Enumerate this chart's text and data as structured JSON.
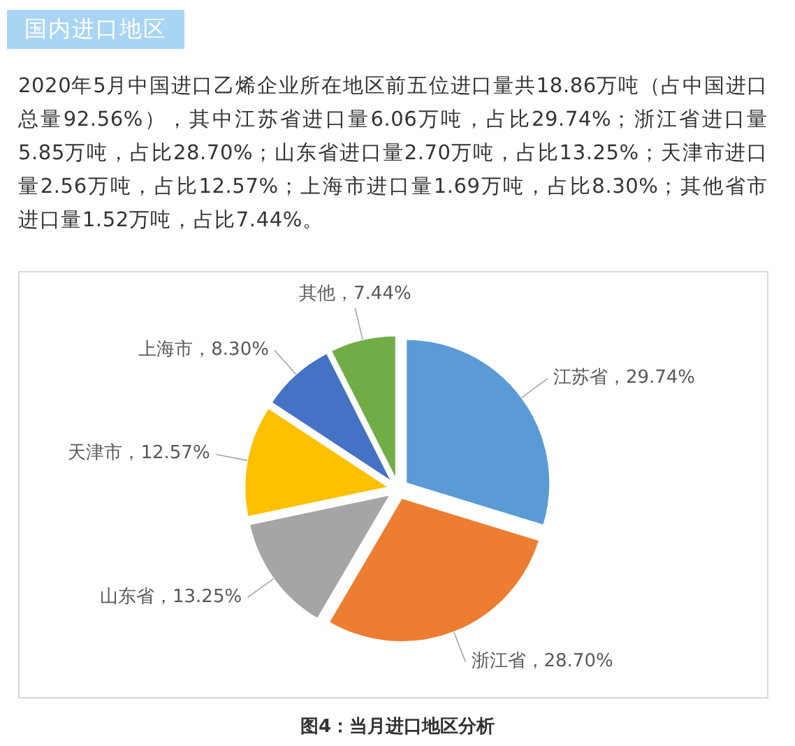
{
  "chart_data": {
    "type": "pie",
    "title": "图4：当月进口地区分析",
    "categories": [
      "江苏省",
      "浙江省",
      "山东省",
      "天津市",
      "上海市",
      "其他"
    ],
    "values": [
      29.74,
      28.7,
      13.25,
      12.57,
      8.3,
      7.44
    ],
    "value_labels": [
      "29.74%",
      "28.70%",
      "13.25%",
      "12.57%",
      "8.30%",
      "7.44%"
    ],
    "colors": [
      "#5b9bd5",
      "#ed7d31",
      "#a5a5a5",
      "#ffc000",
      "#4472c4",
      "#70ad47"
    ],
    "annotations": [
      "国内进口地区",
      "2020年5月中国进口乙烯企业所在地区前五位进口量共18.86万吨（占中国进口总量92.56%），其中江苏省进口量6.06万吨，占比29.74%；浙江省进口量5.85万吨，占比28.70%；山东省进口量2.70万吨，占比13.25%；天津市进口量2.56万吨，占比12.57%；上海市进口量1.69万吨，占比8.30%；其他省市进口量1.52万吨，占比7.44%。"
    ]
  }
}
